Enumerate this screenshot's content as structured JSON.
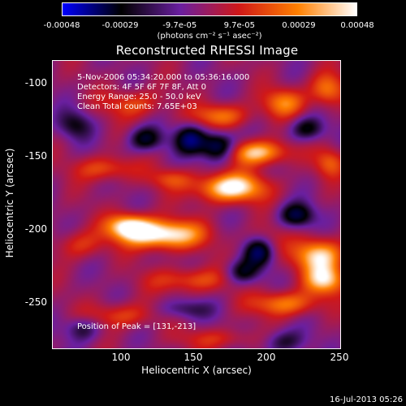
{
  "chart_data": {
    "type": "heatmap",
    "title": "Reconstructed RHESSI Image",
    "xlabel": "Heliocentric X (arcsec)",
    "ylabel": "Heliocentric Y (arcsec)",
    "xlim": [
      62,
      250
    ],
    "ylim": [
      -285,
      -88
    ],
    "x_ticks": [
      "100",
      "150",
      "200",
      "250"
    ],
    "y_ticks": [
      "-100",
      "-150",
      "-200",
      "-250"
    ],
    "info_lines": [
      "5-Nov-2006 05:34:20.000 to 05:36:16.000",
      "Detectors: 4F 5F 6F 7F 8F, Att 0",
      "Energy Range: 25.0 - 50.0 keV",
      "Clean      Total counts: 7.65E+03"
    ],
    "peak_label": "Position of Peak = [131,-213]",
    "peak": {
      "x": 131,
      "y": -213
    },
    "colorbar": {
      "tick_labels": [
        "-0.00048",
        "-0.00029",
        "-9.7e-05",
        "9.7e-05",
        "0.00029",
        "0.00048"
      ],
      "tick_values": [
        -0.00048,
        -0.00029,
        -9.7e-05,
        9.7e-05,
        0.00029,
        0.00048
      ],
      "range": [
        -0.00048,
        0.00048
      ],
      "units_label": "(photons cm⁻² s⁻¹ asec⁻²)",
      "colors": [
        "#0000ff",
        "#000000",
        "#6a1fa0",
        "#d01818",
        "#ff8000",
        "#ffffff"
      ]
    },
    "features": [
      {
        "x": 134,
        "y": -207,
        "value": 1.0,
        "sx": 18,
        "sy": 7
      },
      {
        "x": 112,
        "y": -201,
        "value": 0.82,
        "sx": 10,
        "sy": 6
      },
      {
        "x": 178,
        "y": -175,
        "value": 0.95,
        "sx": 16,
        "sy": 7
      },
      {
        "x": 196,
        "y": -151,
        "value": 0.8,
        "sx": 14,
        "sy": 6
      },
      {
        "x": 172,
        "y": -126,
        "value": 0.55,
        "sx": 13,
        "sy": 6
      },
      {
        "x": 213,
        "y": -117,
        "value": 0.55,
        "sx": 10,
        "sy": 7
      },
      {
        "x": 241,
        "y": -108,
        "value": 0.6,
        "sx": 8,
        "sy": 8
      },
      {
        "x": 115,
        "y": -118,
        "value": 0.4,
        "sx": 14,
        "sy": 7
      },
      {
        "x": 97,
        "y": -162,
        "value": 0.45,
        "sx": 14,
        "sy": 6
      },
      {
        "x": 80,
        "y": -214,
        "value": 0.35,
        "sx": 11,
        "sy": 7
      },
      {
        "x": 236,
        "y": -221,
        "value": 0.8,
        "sx": 12,
        "sy": 8
      },
      {
        "x": 240,
        "y": -238,
        "value": 0.75,
        "sx": 10,
        "sy": 7
      },
      {
        "x": 213,
        "y": -254,
        "value": 0.6,
        "sx": 15,
        "sy": 6
      },
      {
        "x": 152,
        "y": -238,
        "value": 0.45,
        "sx": 18,
        "sy": 6
      },
      {
        "x": 107,
        "y": -262,
        "value": 0.4,
        "sx": 16,
        "sy": 6
      },
      {
        "x": 243,
        "y": -158,
        "value": 0.45,
        "sx": 7,
        "sy": 7
      },
      {
        "x": 139,
        "y": -169,
        "value": 0.35,
        "sx": 10,
        "sy": 5
      },
      {
        "x": 200,
        "y": -212,
        "value": 0.3,
        "sx": 9,
        "sy": 8
      },
      {
        "x": 170,
        "y": -278,
        "value": 0.3,
        "sx": 18,
        "sy": 5
      },
      {
        "x": 123,
        "y": -142,
        "value": -0.55,
        "sx": 8,
        "sy": 6
      },
      {
        "x": 152,
        "y": -142,
        "value": -0.65,
        "sx": 7,
        "sy": 7
      },
      {
        "x": 170,
        "y": -147,
        "value": -0.8,
        "sx": 8,
        "sy": 7
      },
      {
        "x": 197,
        "y": -218,
        "value": -0.75,
        "sx": 7,
        "sy": 7
      },
      {
        "x": 221,
        "y": -194,
        "value": -0.6,
        "sx": 8,
        "sy": 6
      },
      {
        "x": 186,
        "y": -233,
        "value": -0.5,
        "sx": 8,
        "sy": 6
      },
      {
        "x": 228,
        "y": -135,
        "value": -0.5,
        "sx": 8,
        "sy": 6
      },
      {
        "x": 212,
        "y": -280,
        "value": -0.4,
        "sx": 10,
        "sy": 6
      },
      {
        "x": 82,
        "y": -271,
        "value": -0.4,
        "sx": 8,
        "sy": 6
      },
      {
        "x": 148,
        "y": -258,
        "value": -0.35,
        "sx": 12,
        "sy": 5
      },
      {
        "x": 77,
        "y": -132,
        "value": -0.4,
        "sx": 8,
        "sy": 7
      }
    ]
  },
  "timestamp": "16-Jul-2013 05:26"
}
